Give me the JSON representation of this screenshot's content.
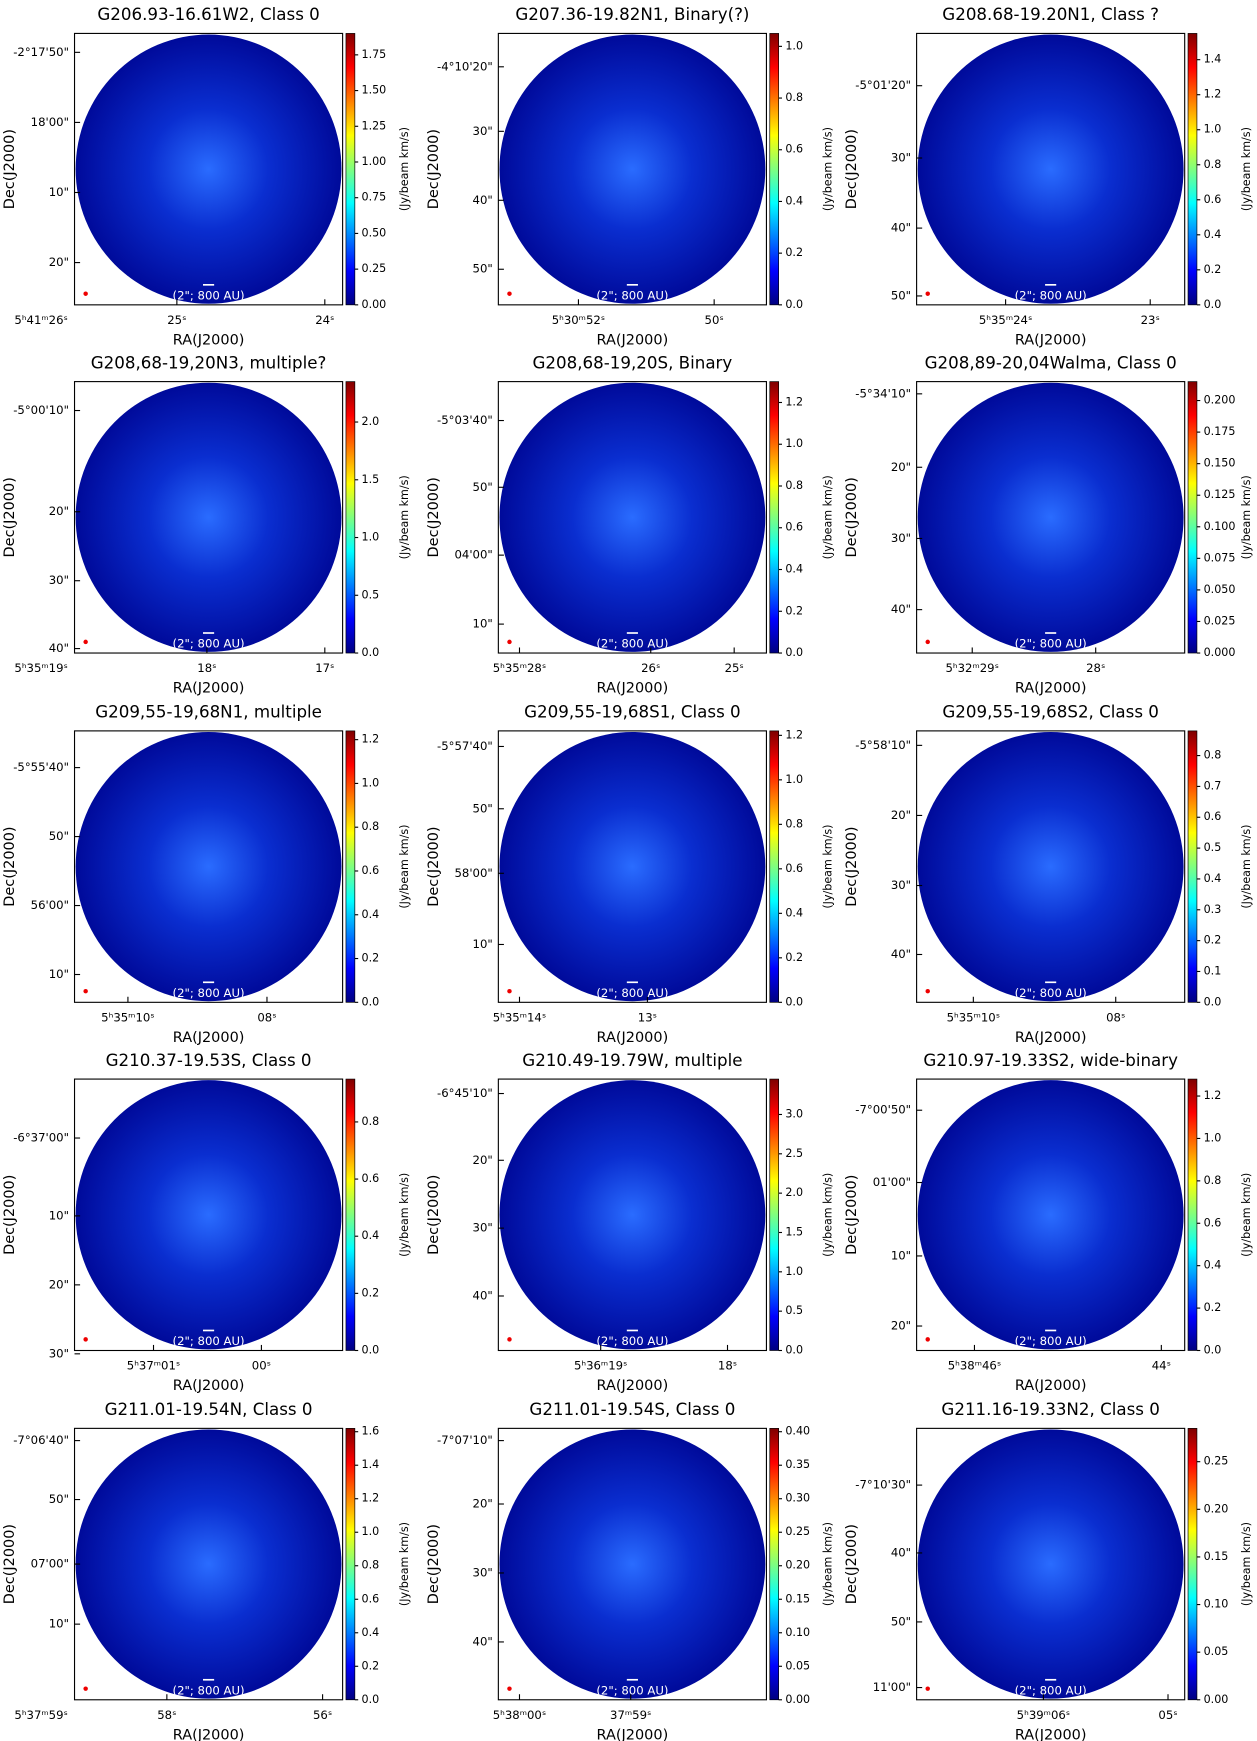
{
  "labels": {
    "ra_axis": "RA(J2000)",
    "dec_axis": "Dec(J2000)",
    "cbar": "(Jy/beam km/s)",
    "scale_bar": "(2\"; 800 AU)"
  },
  "panels": [
    {
      "title": "G206.93-16.61W2, Class 0",
      "dec_ticks": [
        "-2°17'50\"",
        "18'00\"",
        "10\"",
        "20\""
      ],
      "ra_ticks": [
        "5ʰ41ᵐ26ˢ",
        "25ˢ",
        "24ˢ"
      ],
      "cbar_lim": [
        0,
        1.9
      ],
      "cbar_ticks": [
        {
          "value": 0,
          "label": "0.00"
        },
        0.25,
        {
          "value": 0.5,
          "label": "0.50"
        },
        0.75,
        {
          "value": 1,
          "label": "1.00"
        },
        1.25,
        {
          "value": 1.5,
          "label": "1.50"
        },
        1.75
      ]
    },
    {
      "title": "G207.36-19.82N1, Binary(?)",
      "dec_ticks": [
        "-4°10'20\"",
        "30\"",
        "40\"",
        "50\""
      ],
      "ra_ticks": [
        "5ʰ30ᵐ52ˢ",
        "50ˢ"
      ],
      "cbar_lim": [
        0,
        1.05
      ],
      "cbar_ticks": [
        {
          "value": 0,
          "label": "0.0"
        },
        0.2,
        0.4,
        0.6,
        0.8,
        {
          "value": 1,
          "label": "1.0"
        }
      ]
    },
    {
      "title": "G208.68-19.20N1, Class ?",
      "dec_ticks": [
        "-5°01'20\"",
        "30\"",
        "40\"",
        "50\""
      ],
      "ra_ticks": [
        "5ʰ35ᵐ24ˢ",
        "23ˢ"
      ],
      "cbar_lim": [
        0,
        1.55
      ],
      "cbar_ticks": [
        {
          "value": 0,
          "label": "0.0"
        },
        0.2,
        0.4,
        0.6,
        0.8,
        {
          "value": 1,
          "label": "1.0"
        },
        1.2,
        1.4
      ]
    },
    {
      "title": "G208,68-19,20N3, multiple?",
      "dec_ticks": [
        "-5°00'10\"",
        "20\"",
        "30\"",
        "40\""
      ],
      "ra_ticks": [
        "5ʰ35ᵐ19ˢ",
        "18ˢ",
        "17ˢ"
      ],
      "cbar_lim": [
        0,
        2.35
      ],
      "cbar_ticks": [
        {
          "value": 0,
          "label": "0.0"
        },
        0.5,
        {
          "value": 1,
          "label": "1.0"
        },
        1.5,
        {
          "value": 2,
          "label": "2.0"
        }
      ]
    },
    {
      "title": "G208,68-19,20S, Binary",
      "dec_ticks": [
        "-5°03'40\"",
        "50\"",
        "04'00\"",
        "10\""
      ],
      "ra_ticks": [
        "5ʰ35ᵐ28ˢ",
        "26ˢ",
        "25ˢ"
      ],
      "cbar_lim": [
        0,
        1.3
      ],
      "cbar_ticks": [
        {
          "value": 0,
          "label": "0.0"
        },
        0.2,
        0.4,
        0.6,
        0.8,
        {
          "value": 1,
          "label": "1.0"
        },
        1.2
      ]
    },
    {
      "title": "G208,89-20,04Walma, Class 0",
      "dec_ticks": [
        "-5°34'10\"",
        "20\"",
        "30\"",
        "40\""
      ],
      "ra_ticks": [
        "5ʰ32ᵐ29ˢ",
        "28ˢ"
      ],
      "cbar_lim": [
        0,
        0.215
      ],
      "cbar_ticks": [
        {
          "value": 0,
          "label": "0.000"
        },
        0.025,
        {
          "value": 0.05,
          "label": "0.050"
        },
        0.075,
        {
          "value": 0.1,
          "label": "0.100"
        },
        0.125,
        {
          "value": 0.15,
          "label": "0.150"
        },
        0.175,
        {
          "value": 0.2,
          "label": "0.200"
        }
      ]
    },
    {
      "title": "G209,55-19,68N1, multiple",
      "dec_ticks": [
        "-5°55'40\"",
        "50\"",
        "56'00\"",
        "10\""
      ],
      "ra_ticks": [
        "5ʰ35ᵐ10ˢ",
        "08ˢ"
      ],
      "cbar_lim": [
        0,
        1.24
      ],
      "cbar_ticks": [
        {
          "value": 0,
          "label": "0.0"
        },
        0.2,
        0.4,
        0.6,
        0.8,
        {
          "value": 1,
          "label": "1.0"
        },
        1.2
      ]
    },
    {
      "title": "G209,55-19,68S1, Class 0",
      "dec_ticks": [
        "-5°57'40\"",
        "50\"",
        "58'00\"",
        "10\""
      ],
      "ra_ticks": [
        "5ʰ35ᵐ14ˢ",
        "13ˢ"
      ],
      "cbar_lim": [
        0,
        1.22
      ],
      "cbar_ticks": [
        {
          "value": 0,
          "label": "0.0"
        },
        0.2,
        0.4,
        0.6,
        0.8,
        {
          "value": 1,
          "label": "1.0"
        },
        1.2
      ]
    },
    {
      "title": "G209,55-19,68S2, Class 0",
      "dec_ticks": [
        "-5°58'10\"",
        "20\"",
        "30\"",
        "40\""
      ],
      "ra_ticks": [
        "5ʰ35ᵐ10ˢ",
        "08ˢ"
      ],
      "cbar_lim": [
        0,
        0.88
      ],
      "cbar_ticks": [
        {
          "value": 0,
          "label": "0.0"
        },
        0.1,
        0.2,
        0.3,
        0.4,
        0.5,
        0.6,
        0.7,
        0.8
      ]
    },
    {
      "title": "G210.37-19.53S, Class 0",
      "dec_ticks": [
        "-6°37'00\"",
        "10\"",
        "20\"",
        "30\""
      ],
      "ra_ticks": [
        "5ʰ37ᵐ01ˢ",
        "00ˢ"
      ],
      "cbar_lim": [
        0,
        0.95
      ],
      "cbar_ticks": [
        {
          "value": 0,
          "label": "0.0"
        },
        0.2,
        0.4,
        0.6,
        0.8
      ]
    },
    {
      "title": "G210.49-19.79W, multiple",
      "dec_ticks": [
        "-6°45'10\"",
        "20\"",
        "30\"",
        "40\""
      ],
      "ra_ticks": [
        "5ʰ36ᵐ19ˢ",
        "18ˢ"
      ],
      "cbar_lim": [
        0,
        3.45
      ],
      "cbar_ticks": [
        {
          "value": 0,
          "label": "0.0"
        },
        0.5,
        {
          "value": 1,
          "label": "1.0"
        },
        1.5,
        {
          "value": 2,
          "label": "2.0"
        },
        2.5,
        {
          "value": 3,
          "label": "3.0"
        }
      ]
    },
    {
      "title": "G210.97-19.33S2, wide-binary",
      "dec_ticks": [
        "-7°00'50\"",
        "01'00\"",
        "10\"",
        "20\""
      ],
      "ra_ticks": [
        "5ʰ38ᵐ46ˢ",
        "44ˢ"
      ],
      "cbar_lim": [
        0,
        1.28
      ],
      "cbar_ticks": [
        {
          "value": 0,
          "label": "0.0"
        },
        0.2,
        0.4,
        0.6,
        0.8,
        {
          "value": 1,
          "label": "1.0"
        },
        1.2
      ]
    },
    {
      "title": "G211.01-19.54N, Class 0",
      "dec_ticks": [
        "-7°06'40\"",
        "50\"",
        "07'00\"",
        "10\""
      ],
      "ra_ticks": [
        "5ʰ37ᵐ59ˢ",
        "58ˢ",
        "56ˢ"
      ],
      "cbar_lim": [
        0,
        1.62
      ],
      "cbar_ticks": [
        {
          "value": 0,
          "label": "0.0"
        },
        0.2,
        0.4,
        0.6,
        0.8,
        {
          "value": 1,
          "label": "1.0"
        },
        1.2,
        1.4,
        1.6
      ]
    },
    {
      "title": "G211.01-19.54S, Class 0",
      "dec_ticks": [
        "-7°07'10\"",
        "20\"",
        "30\"",
        "40\""
      ],
      "ra_ticks": [
        "5ʰ38ᵐ00ˢ",
        "37ᵐ59ˢ"
      ],
      "cbar_lim": [
        0,
        0.405
      ],
      "cbar_ticks": [
        {
          "value": 0,
          "label": "0.00"
        },
        0.05,
        {
          "value": 0.1,
          "label": "0.10"
        },
        0.15,
        {
          "value": 0.2,
          "label": "0.20"
        },
        0.25,
        {
          "value": 0.3,
          "label": "0.30"
        },
        0.35,
        {
          "value": 0.4,
          "label": "0.40"
        }
      ]
    },
    {
      "title": "G211.16-19.33N2, Class 0",
      "dec_ticks": [
        "-7°10'30\"",
        "40\"",
        "50\"",
        "11'00\""
      ],
      "ra_ticks": [
        "5ʰ39ᵐ06ˢ",
        "05ˢ"
      ],
      "cbar_lim": [
        0,
        0.285
      ],
      "cbar_ticks": [
        {
          "value": 0,
          "label": "0.00"
        },
        0.05,
        {
          "value": 0.1,
          "label": "0.10"
        },
        0.15,
        {
          "value": 0.2,
          "label": "0.20"
        },
        0.25
      ]
    }
  ]
}
